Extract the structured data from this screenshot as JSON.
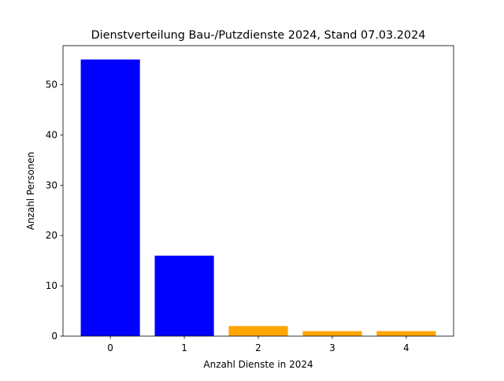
{
  "chart_data": {
    "type": "bar",
    "title": "Dienstverteilung Bau-/Putzdienste 2024, Stand 07.03.2024",
    "x_label": "Anzahl Dienste in 2024",
    "y_label": "Anzahl Personen",
    "x": [
      0,
      1,
      2,
      3,
      4
    ],
    "values": [
      55,
      16,
      2,
      1,
      1
    ],
    "colors": [
      "#0000ff",
      "#0000ff",
      "#ffa500",
      "#ffa500",
      "#ffa500"
    ],
    "xlim": [
      -0.64,
      4.64
    ],
    "xticks": [
      0,
      1,
      2,
      3,
      4
    ],
    "ylim": [
      0,
      57.75
    ],
    "yticks": [
      0,
      10,
      20,
      30,
      40,
      50
    ],
    "grid": false
  }
}
